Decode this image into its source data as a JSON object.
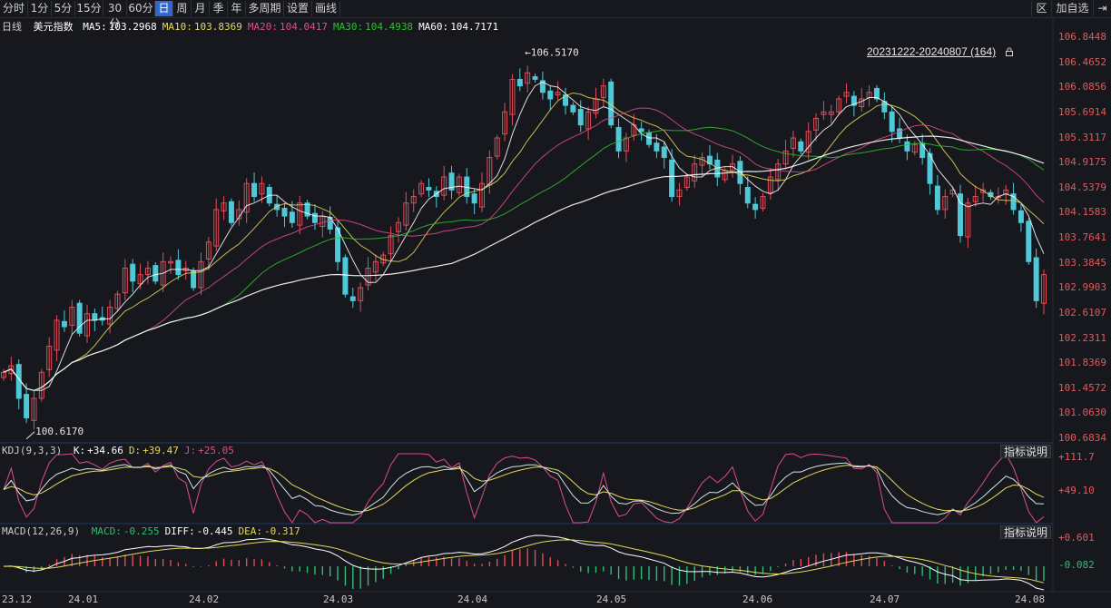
{
  "toolbar": {
    "tabs": [
      "分时",
      "1分",
      "5分",
      "15分",
      "30分",
      "60分",
      "日",
      "周",
      "月",
      "季",
      "年",
      "多周期",
      "设置",
      "画线"
    ],
    "active_tab": "日",
    "right_items": [
      "区",
      "加自选",
      "⇥"
    ]
  },
  "info": {
    "period": "日线",
    "name": "美元指数",
    "ma": [
      {
        "label": "MA5:",
        "value": "103.2968",
        "color": "#ffffff"
      },
      {
        "label": "MA10:",
        "value": "103.8369",
        "color": "#e6d95a"
      },
      {
        "label": "MA20:",
        "value": "104.0417",
        "color": "#e04c8a"
      },
      {
        "label": "MA30:",
        "value": "104.4938",
        "color": "#2fbf2f"
      },
      {
        "label": "MA60:",
        "value": "104.7171",
        "color": "#ffffff"
      }
    ]
  },
  "range_label": "20231222-20240807 (164)",
  "annotations": {
    "high": "←106.5170",
    "low": "100.6170"
  },
  "price_axis": [
    "106.8448",
    "106.4652",
    "106.0856",
    "105.6914",
    "105.3117",
    "104.9175",
    "104.5379",
    "104.1583",
    "103.7641",
    "103.3845",
    "102.9903",
    "102.6107",
    "102.2311",
    "101.8369",
    "101.4572",
    "101.0630",
    "100.6834"
  ],
  "kdj": {
    "title": "KDJ(9,3,3)",
    "items": [
      {
        "label": "K:",
        "value": "+34.66",
        "color": "#ffffff"
      },
      {
        "label": "D:",
        "value": "+39.47",
        "color": "#e6d95a"
      },
      {
        "label": "J:",
        "value": "+25.05",
        "color": "#e04c8a"
      }
    ],
    "axis": [
      "+111.7",
      "+49.10"
    ],
    "help": "指标说明"
  },
  "macd": {
    "title": "MACD(12,26,9)",
    "items": [
      {
        "label": "MACD:",
        "value": "-0.255",
        "color": "#2fbf71"
      },
      {
        "label": "DIFF:",
        "value": "-0.445",
        "color": "#ffffff"
      },
      {
        "label": "DEA:",
        "value": "-0.317",
        "color": "#e6d95a"
      }
    ],
    "axis": [
      "+0.601",
      "-0.082"
    ],
    "help": "指标说明"
  },
  "date_axis": [
    "23.12",
    "24.01",
    "24.02",
    "24.03",
    "24.04",
    "24.05",
    "24.06",
    "24.07",
    "24.08"
  ],
  "colors": {
    "up": "#e04c5a",
    "down": "#4fc8d8",
    "bg": "#16181d",
    "grid": "#2a2d33",
    "active_tab": "#2f66d6"
  },
  "chart_data": {
    "type": "candlestick",
    "ylim": [
      100.6834,
      106.8448
    ],
    "high": 106.517,
    "low": 100.617,
    "closes": [
      101.6,
      101.7,
      101.2,
      100.9,
      101.2,
      101.6,
      102.0,
      102.4,
      102.3,
      102.6,
      102.2,
      102.5,
      102.4,
      102.4,
      102.6,
      102.8,
      103.2,
      103.0,
      103.1,
      103.2,
      103.0,
      103.3,
      103.3,
      103.1,
      103.2,
      102.9,
      103.3,
      103.6,
      104.1,
      104.2,
      103.9,
      104.1,
      104.5,
      104.3,
      104.5,
      104.2,
      104.1,
      104.0,
      103.9,
      104.2,
      104.0,
      103.9,
      104.0,
      103.8,
      103.3,
      102.8,
      102.7,
      102.9,
      103.2,
      103.3,
      103.4,
      103.7,
      103.9,
      104.2,
      104.3,
      104.5,
      104.4,
      104.3,
      104.6,
      104.4,
      104.6,
      104.3,
      104.2,
      104.5,
      104.9,
      105.2,
      105.6,
      106.1,
      106.0,
      106.2,
      106.1,
      105.9,
      105.8,
      105.9,
      105.7,
      105.6,
      105.4,
      105.6,
      105.8,
      106.0,
      105.4,
      105.0,
      105.2,
      105.4,
      105.3,
      105.1,
      105.0,
      104.9,
      104.3,
      104.4,
      104.6,
      104.8,
      104.9,
      104.8,
      104.6,
      104.7,
      104.8,
      104.5,
      104.2,
      104.1,
      104.3,
      104.6,
      104.8,
      105.0,
      105.2,
      105.0,
      105.3,
      105.5,
      105.6,
      105.6,
      105.8,
      105.9,
      105.7,
      105.8,
      105.9,
      105.8,
      105.6,
      105.3,
      105.2,
      105.0,
      105.1,
      104.9,
      104.5,
      104.1,
      104.3,
      104.4,
      103.7,
      104.2,
      104.3,
      104.4,
      104.3,
      104.3,
      104.4,
      104.1,
      103.9,
      103.3,
      102.7,
      103.1
    ]
  }
}
